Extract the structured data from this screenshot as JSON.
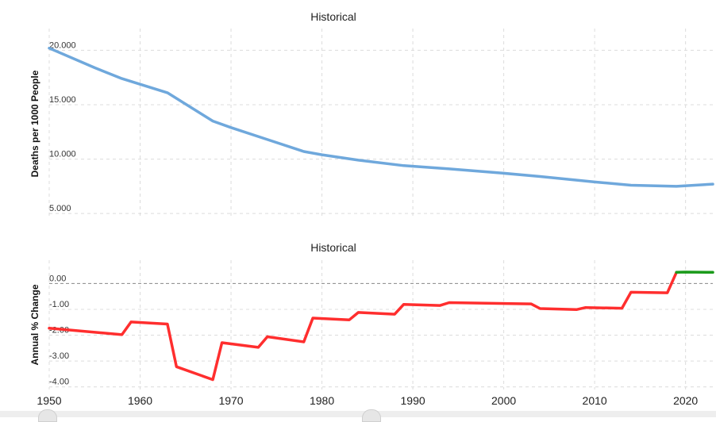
{
  "chart_data": [
    {
      "type": "line",
      "title": "Historical",
      "ylabel": "Deaths per 1000 People",
      "xlim": [
        1950,
        2023
      ],
      "ylim": [
        4.5,
        22
      ],
      "yticks": [
        5,
        10,
        15,
        20
      ],
      "ytick_labels": [
        "5.000",
        "10.000",
        "15.000",
        "20.000"
      ],
      "grid": true,
      "series": [
        {
          "color": "#6fa8dc",
          "x": [
            1950,
            1955,
            1958,
            1963,
            1968,
            1970,
            1974,
            1978,
            1980,
            1984,
            1989,
            1994,
            2000,
            2004,
            2010,
            2014,
            2019,
            2023
          ],
          "y": [
            20.2,
            18.4,
            17.4,
            16.1,
            13.5,
            12.9,
            11.8,
            10.7,
            10.4,
            9.9,
            9.4,
            9.1,
            8.7,
            8.4,
            7.9,
            7.6,
            7.5,
            7.7
          ]
        }
      ]
    },
    {
      "type": "line",
      "title": "Historical",
      "ylabel": "Annual % Change",
      "xlim": [
        1950,
        2023
      ],
      "ylim": [
        -4.1,
        0.9
      ],
      "yticks": [
        -4,
        -3,
        -2,
        -1,
        0
      ],
      "ytick_labels": [
        "-4.00",
        "-3.00",
        "-2.00",
        "-1.00",
        "0.00"
      ],
      "xticks": [
        1950,
        1960,
        1970,
        1980,
        1990,
        2000,
        2010,
        2020
      ],
      "xtick_labels": [
        "1950",
        "1960",
        "1970",
        "1980",
        "1990",
        "2000",
        "2010",
        "2020"
      ],
      "grid": true,
      "series": [
        {
          "color": "#ff2e2e",
          "x": [
            1950,
            1958,
            1959,
            1963,
            1964,
            1968,
            1969,
            1973,
            1974,
            1978,
            1979,
            1983,
            1984,
            1988,
            1989,
            1993,
            1994,
            2003,
            2004,
            2008,
            2009,
            2013,
            2014,
            2018,
            2019
          ],
          "y": [
            -1.73,
            -1.98,
            -1.49,
            -1.57,
            -3.22,
            -3.72,
            -2.29,
            -2.47,
            -2.06,
            -2.26,
            -1.34,
            -1.41,
            -1.12,
            -1.19,
            -0.81,
            -0.85,
            -0.74,
            -0.79,
            -0.97,
            -1.01,
            -0.93,
            -0.96,
            -0.34,
            -0.36,
            0.43
          ]
        },
        {
          "color": "#1a9a1a",
          "x": [
            2019,
            2020,
            2023
          ],
          "y": [
            0.43,
            0.44,
            0.43
          ]
        }
      ]
    }
  ]
}
